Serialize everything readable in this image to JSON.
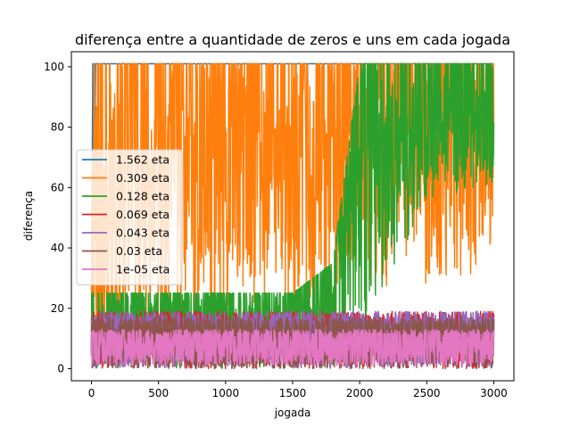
{
  "chart_data": {
    "type": "line",
    "title": "diferença entre a quantidade de zeros e uns em cada jogada",
    "xlabel": "jogada",
    "ylabel": "diferença",
    "xlim": [
      -150,
      3150
    ],
    "ylim": [
      -4,
      105
    ],
    "xticks": [
      0,
      500,
      1000,
      1500,
      2000,
      2500,
      3000
    ],
    "yticks": [
      0,
      20,
      40,
      60,
      80,
      100
    ],
    "grid": false,
    "legend_position": "center-left",
    "series": [
      {
        "name": "1.562 eta",
        "color": "#1f77b4",
        "seed": 11,
        "kind": "saturate",
        "x": [
          0,
          5,
          10,
          15,
          20,
          25,
          30,
          35,
          40,
          45,
          50,
          3000
        ],
        "y": [
          5,
          60,
          101,
          30,
          101,
          75,
          101,
          101,
          101,
          101,
          101,
          101
        ]
      },
      {
        "name": "0.309 eta",
        "color": "#ff7f0e",
        "seed": 23,
        "kind": "jagged",
        "x": [
          0,
          280,
          500,
          1000,
          1500,
          2000,
          2500,
          3000
        ],
        "range_low": [
          0,
          10,
          15,
          20,
          22,
          25,
          28,
          30
        ],
        "range_high": [
          101,
          101,
          101,
          101,
          101,
          101,
          101,
          101
        ]
      },
      {
        "name": "0.128 eta",
        "color": "#2ca02c",
        "seed": 37,
        "kind": "jagged",
        "x": [
          0,
          500,
          1000,
          1500,
          1800,
          2000,
          2100,
          2500,
          3000
        ],
        "range_low": [
          0,
          0,
          0,
          0,
          0,
          5,
          20,
          55,
          60
        ],
        "range_high": [
          25,
          25,
          25,
          25,
          35,
          101,
          101,
          101,
          101
        ]
      },
      {
        "name": "0.069 eta",
        "color": "#d62728",
        "seed": 41,
        "kind": "noise",
        "x": [
          0,
          3000
        ],
        "range_low": [
          0,
          0
        ],
        "range_high": [
          19,
          19
        ]
      },
      {
        "name": "0.043 eta",
        "color": "#9467bd",
        "seed": 53,
        "kind": "noise",
        "x": [
          0,
          3000
        ],
        "range_low": [
          0,
          0
        ],
        "range_high": [
          19,
          19
        ]
      },
      {
        "name": "0.03 eta",
        "color": "#8c564b",
        "seed": 67,
        "kind": "noise",
        "x": [
          0,
          3000
        ],
        "range_low": [
          0,
          0
        ],
        "range_high": [
          17,
          17
        ]
      },
      {
        "name": "1e-05 eta",
        "color": "#e377c2",
        "seed": 79,
        "kind": "noise",
        "x": [
          0,
          3000
        ],
        "range_low": [
          1,
          1
        ],
        "range_high": [
          13,
          13
        ]
      }
    ]
  }
}
